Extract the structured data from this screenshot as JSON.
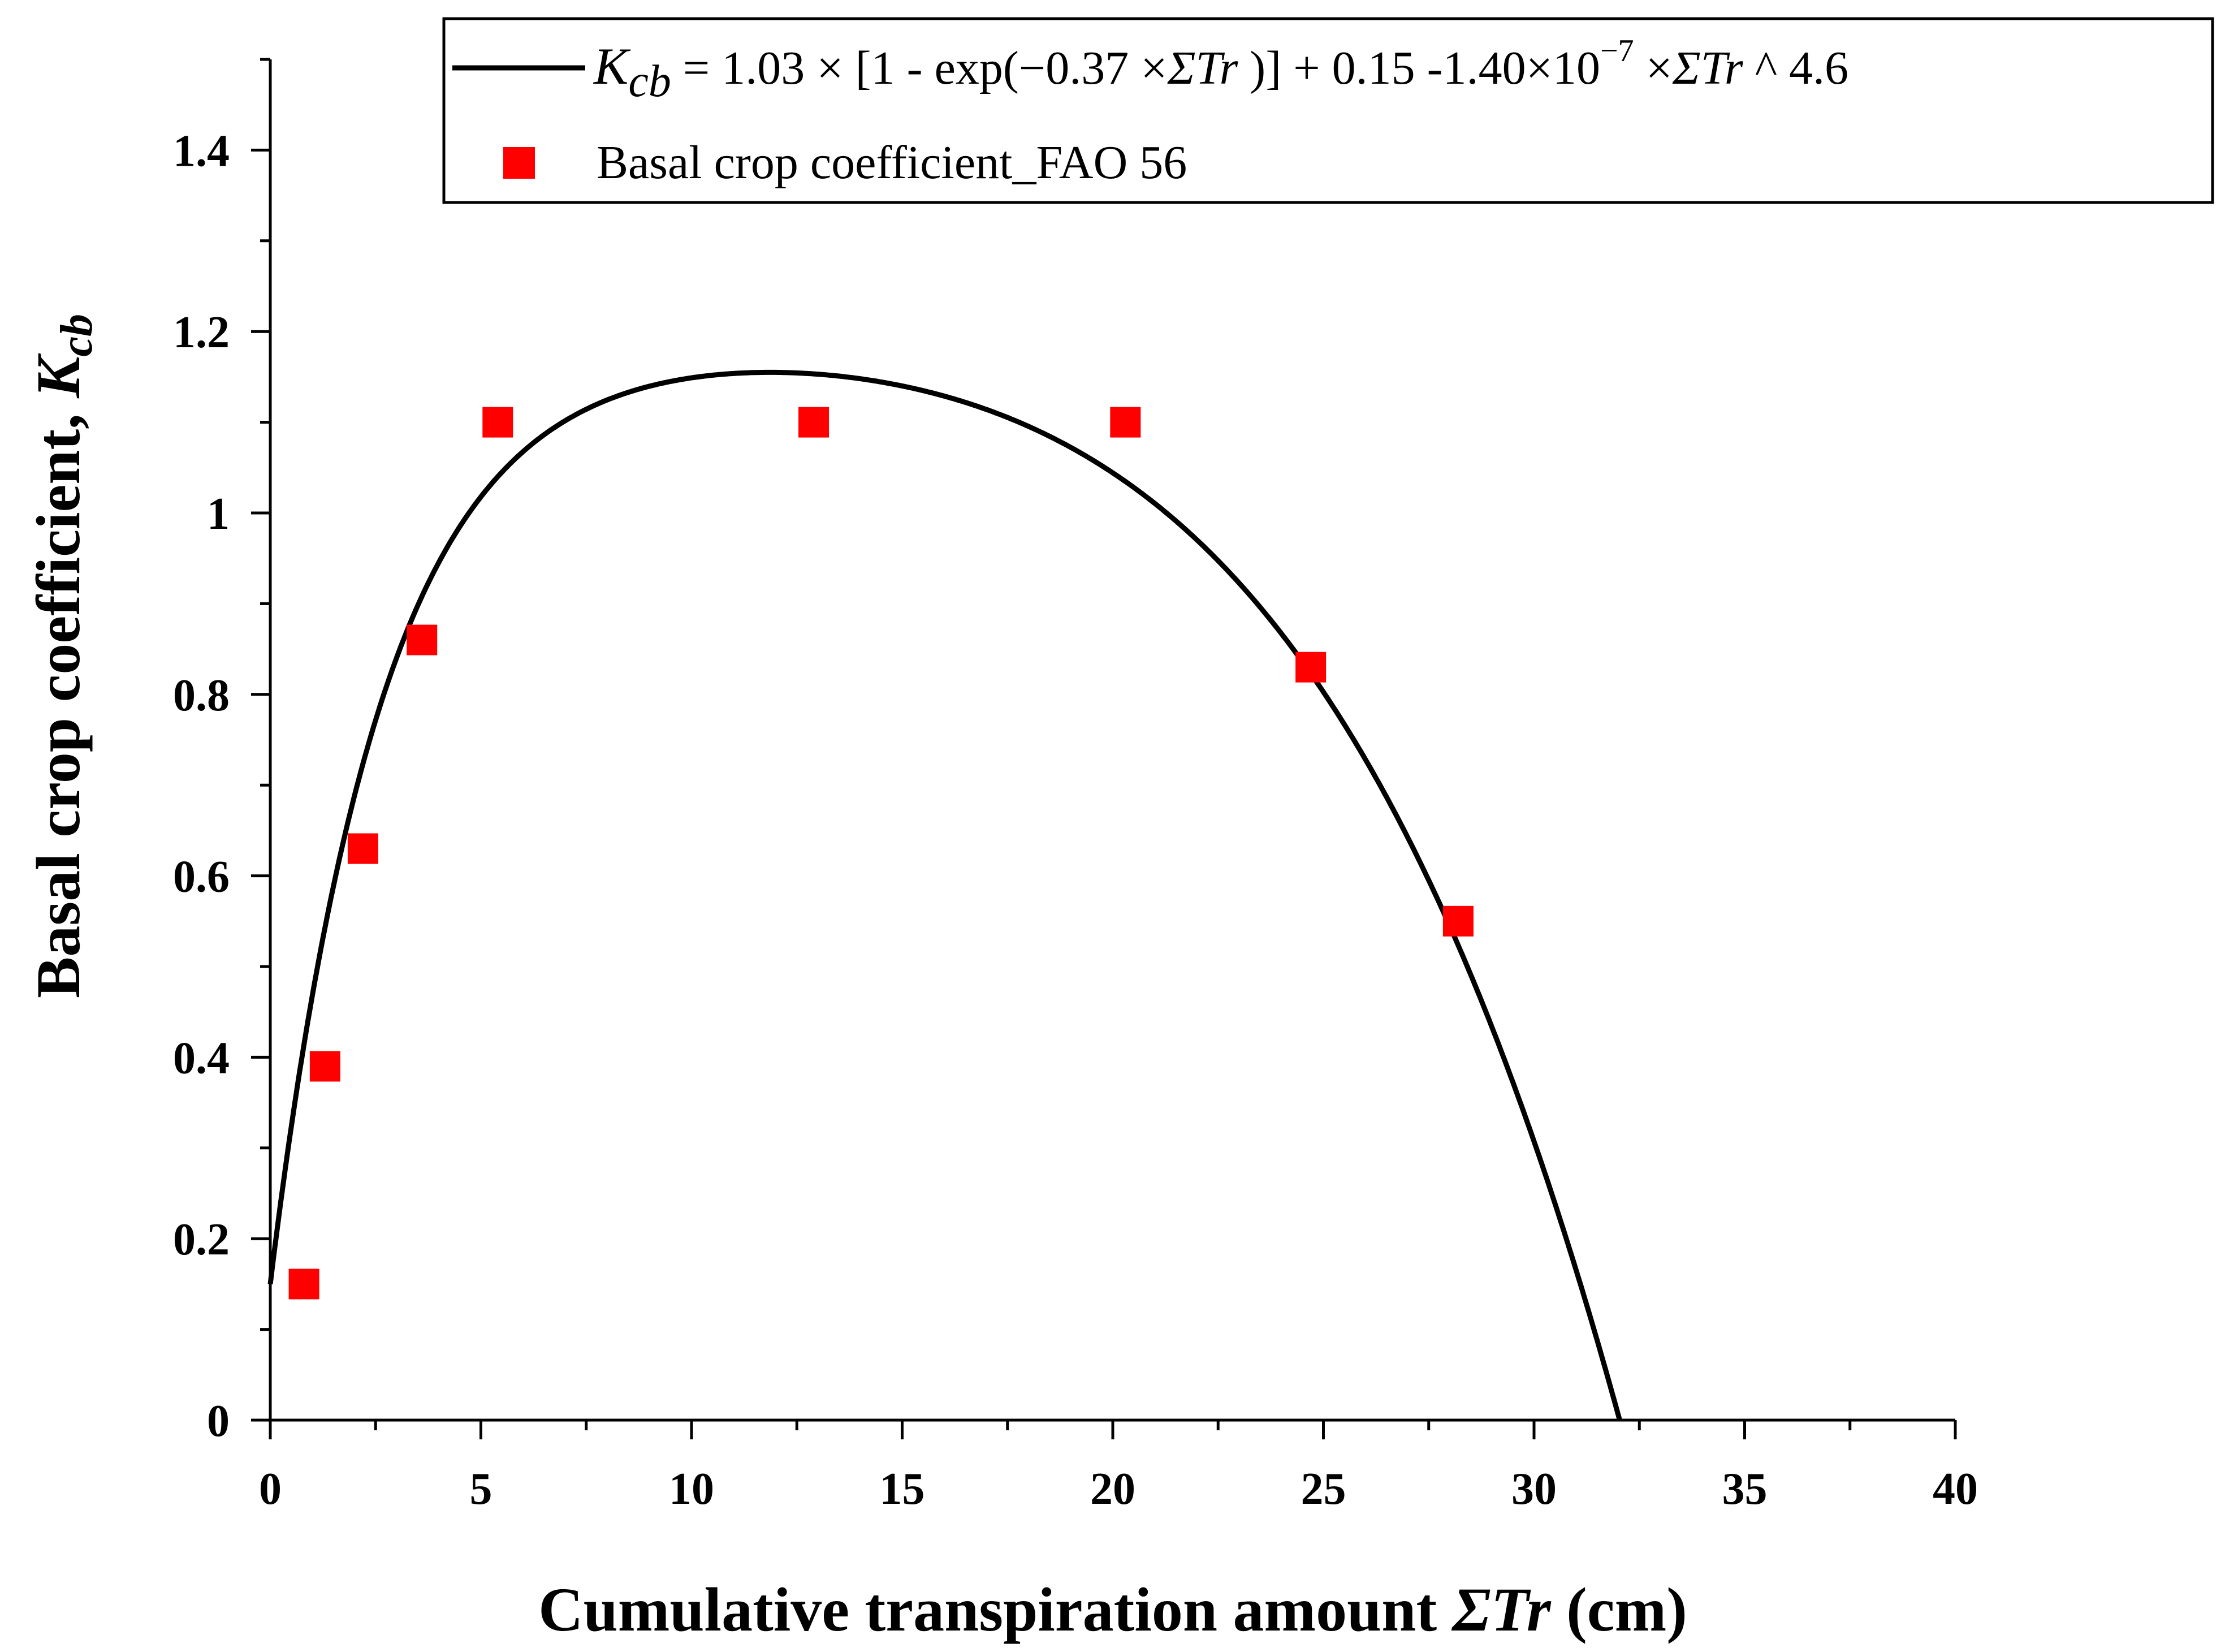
{
  "chart_data": {
    "type": "scatter",
    "xlabel": {
      "prefix": "Cumulative transpiration amount ",
      "symbol": "ΣTr",
      "suffix": " (cm)"
    },
    "ylabel": {
      "prefix": "Basal crop coefficient, ",
      "symbol": "K",
      "subscript": "cb"
    },
    "xlim": [
      0,
      40
    ],
    "ylim": [
      0,
      1.5
    ],
    "x_ticks": [
      0,
      5,
      10,
      15,
      20,
      25,
      30,
      35,
      40
    ],
    "x_tick_labels": [
      "0",
      "5",
      "10",
      "15",
      "20",
      "25",
      "30",
      "35",
      "40"
    ],
    "y_ticks": [
      0,
      0.2,
      0.4,
      0.6,
      0.8,
      1.0,
      1.2,
      1.4
    ],
    "y_tick_labels": [
      "0",
      "0.2",
      "0.4",
      "0.6",
      "0.8",
      "1",
      "1.2",
      "1.4"
    ],
    "grid": false,
    "legend_position": "top-right",
    "series": [
      {
        "type": "line",
        "color": "#000000",
        "legend": {
          "symbol": "K",
          "subscript": "cb",
          "part1": " = 1.03 × [1 - exp(−0.37 ×",
          "sigma": "ΣTr",
          "part2": " )] + 0.15 -1.40×10",
          "exponent": "−7",
          "part3": " ×",
          "sigma2": "ΣTr",
          "part4": "  ^ 4.6"
        },
        "equation": {
          "a": 1.03,
          "b": 0.37,
          "c": 0.15,
          "d": 1.4e-07,
          "n": 4.6
        }
      },
      {
        "type": "scatter",
        "name": "Basal crop coefficient_FAO 56",
        "color": "#ff0000",
        "marker": "square",
        "x": [
          0.8,
          1.3,
          2.2,
          3.6,
          5.4,
          12.9,
          20.3,
          24.7,
          28.2
        ],
        "y": [
          0.15,
          0.39,
          0.63,
          0.86,
          1.1,
          1.1,
          1.1,
          0.83,
          0.55
        ]
      }
    ]
  }
}
